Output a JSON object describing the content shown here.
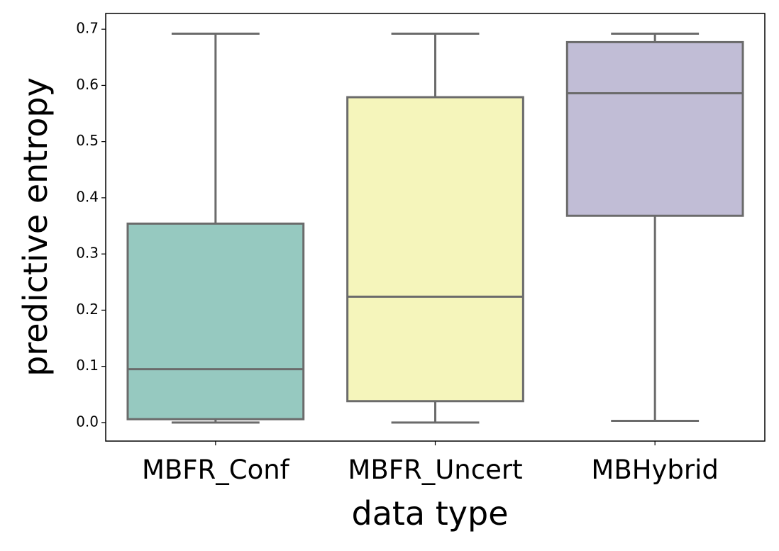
{
  "chart_data": {
    "type": "box",
    "x_label": "data type",
    "y_label": "predictive entropy",
    "categories": [
      "MBFR_Conf",
      "MBFR_Uncert",
      "MBHybrid"
    ],
    "boxes": [
      {
        "min": 0.0,
        "q1": 0.006,
        "median": 0.095,
        "q3": 0.354,
        "max": 0.692,
        "color": "#96c9c0"
      },
      {
        "min": 0.0,
        "q1": 0.038,
        "median": 0.224,
        "q3": 0.579,
        "max": 0.692,
        "color": "#f5f5bb"
      },
      {
        "min": 0.003,
        "q1": 0.368,
        "median": 0.586,
        "q3": 0.677,
        "max": 0.692,
        "color": "#c1bdd6"
      }
    ],
    "line_color": "#6b6b6b",
    "ylim": [
      -0.033,
      0.728
    ],
    "yticks": [
      {
        "value": 0,
        "label": "0.0"
      },
      0.1,
      0.2,
      0.3,
      0.4,
      0.5,
      0.6,
      0.7
    ]
  }
}
